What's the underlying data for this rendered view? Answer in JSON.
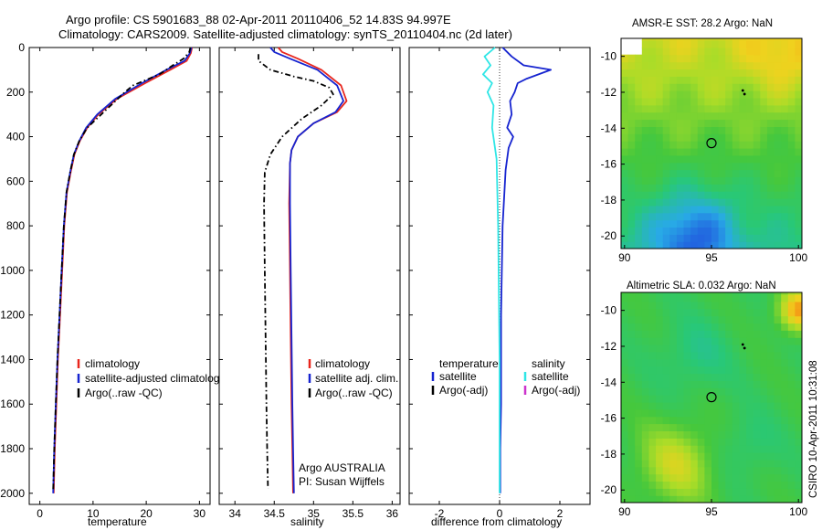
{
  "header": {
    "title_line1": "Argo profile: CS 5901683_88 02-Apr-2011 20110406_52 14.83S 94.997E",
    "title_line2": "Climatology: CARS2009. Satellite-adjusted climatology: synTS_20110404.nc (2d later)"
  },
  "colors": {
    "climatology": "#e8261d",
    "satellite": "#1624d0",
    "argo": "#000000",
    "sal_satellite": "#2fe6e6",
    "argo_adj_sal": "#cc33cc"
  },
  "chart_data": [
    {
      "type": "line",
      "name": "temperature",
      "xlabel": "temperature",
      "xlim": [
        -2,
        32
      ],
      "ylim": [
        2050,
        0
      ],
      "xticks": [
        0,
        10,
        20,
        30
      ],
      "yticks": [
        0,
        200,
        400,
        600,
        800,
        1000,
        1200,
        1400,
        1600,
        1800,
        2000
      ],
      "legend": [
        "climatology",
        "satellite-adjusted climatology",
        "Argo(..raw -QC)"
      ],
      "series": [
        {
          "name": "climatology",
          "color": "#e8261d",
          "style": "solid",
          "x": [
            28.6,
            28.4,
            27.6,
            24.5,
            19.8,
            14.5,
            11.0,
            8.9,
            7.5,
            6.5,
            5.8,
            5.1,
            4.6,
            4.2,
            3.8,
            3.4,
            3.1,
            2.8,
            2.6
          ],
          "y": [
            0,
            25,
            60,
            100,
            160,
            230,
            300,
            360,
            420,
            480,
            560,
            650,
            800,
            1000,
            1200,
            1400,
            1600,
            1800,
            2000
          ]
        },
        {
          "name": "satellite-adjusted climatology",
          "color": "#1624d0",
          "style": "solid",
          "x": [
            28.5,
            28.2,
            27.2,
            23.8,
            19.2,
            14.2,
            10.8,
            8.7,
            7.4,
            6.4,
            5.7,
            5.0,
            4.5,
            4.1,
            3.7,
            3.3,
            3.0,
            2.7,
            2.5
          ],
          "y": [
            0,
            25,
            60,
            100,
            160,
            230,
            300,
            360,
            420,
            480,
            560,
            650,
            800,
            1000,
            1200,
            1400,
            1600,
            1800,
            2000
          ]
        },
        {
          "name": "Argo(..raw -QC)",
          "color": "#000000",
          "style": "dashdot",
          "x": [
            28.3,
            28.1,
            27.0,
            25.0,
            22.5,
            19.5,
            17.5,
            16.0,
            12.0,
            8.9,
            7.4,
            6.4,
            5.7,
            5.0,
            4.5,
            4.1,
            3.7,
            3.3,
            3.0,
            2.7,
            2.5
          ],
          "y": [
            0,
            20,
            50,
            80,
            120,
            150,
            170,
            200,
            290,
            360,
            420,
            480,
            560,
            650,
            800,
            1000,
            1200,
            1400,
            1600,
            1800,
            1990
          ]
        }
      ]
    },
    {
      "type": "line",
      "name": "salinity",
      "xlabel": "salinity",
      "xlim": [
        33.8,
        36.1
      ],
      "ylim": [
        2050,
        0
      ],
      "xticks": [
        34,
        34.5,
        35,
        35.5,
        36
      ],
      "legend": [
        "climatology",
        "satellite adj. clim.",
        "Argo(..raw -QC)"
      ],
      "annotation": [
        "Argo AUSTRALIA",
        "PI: Susan Wijffels"
      ],
      "series": [
        {
          "name": "climatology",
          "color": "#e8261d",
          "style": "solid",
          "x": [
            34.55,
            34.6,
            34.8,
            35.1,
            35.35,
            35.42,
            35.3,
            35.0,
            34.8,
            34.72,
            34.7,
            34.69,
            34.7,
            34.71,
            34.72,
            34.73,
            34.74
          ],
          "y": [
            0,
            20,
            50,
            100,
            170,
            240,
            290,
            340,
            400,
            460,
            520,
            700,
            1000,
            1300,
            1600,
            1800,
            2000
          ]
        },
        {
          "name": "satellite adj. clim.",
          "color": "#1624d0",
          "style": "solid",
          "x": [
            34.45,
            34.5,
            34.7,
            35.05,
            35.3,
            35.38,
            35.28,
            35.0,
            34.8,
            34.72,
            34.7,
            34.7,
            34.71,
            34.72,
            34.73,
            34.74,
            34.75
          ],
          "y": [
            0,
            20,
            50,
            100,
            170,
            240,
            290,
            340,
            400,
            460,
            520,
            700,
            1000,
            1300,
            1600,
            1800,
            2000
          ]
        },
        {
          "name": "Argo(..raw -QC)",
          "color": "#000000",
          "style": "dashdot",
          "x": [
            34.3,
            34.3,
            34.45,
            34.75,
            35.0,
            35.2,
            35.25,
            35.1,
            34.85,
            34.6,
            34.45,
            34.38,
            34.37,
            34.38,
            34.39,
            34.4,
            34.41,
            34.42
          ],
          "y": [
            30,
            60,
            100,
            130,
            150,
            180,
            210,
            260,
            320,
            400,
            480,
            560,
            700,
            1000,
            1300,
            1600,
            1800,
            1980
          ]
        }
      ]
    },
    {
      "type": "line",
      "name": "difference",
      "xlabel": "difference from climatology",
      "xlim": [
        -3,
        3
      ],
      "ylim": [
        2050,
        0
      ],
      "xticks": [
        -2,
        0,
        2
      ],
      "legend_temperature": {
        "heading": "temperature",
        "items": [
          "satellite",
          "Argo(-adj)"
        ]
      },
      "legend_salinity": {
        "heading": "salinity",
        "items": [
          "satellite",
          "Argo(-adj)"
        ]
      },
      "series": [
        {
          "name": "temperature satellite",
          "color": "#1624d0",
          "style": "solid",
          "x": [
            0.1,
            0.4,
            0.8,
            1.7,
            0.9,
            0.6,
            0.5,
            0.35,
            0.4,
            0.25,
            0.45,
            0.3,
            0.2,
            0.1,
            0.05,
            0.05,
            0.02,
            0.02
          ],
          "y": [
            0,
            40,
            80,
            100,
            140,
            160,
            200,
            240,
            300,
            360,
            400,
            450,
            550,
            800,
            1200,
            1600,
            1800,
            2000
          ]
        },
        {
          "name": "salinity satellite",
          "color": "#2fe6e6",
          "style": "solid",
          "x": [
            -0.15,
            -0.5,
            -0.3,
            -0.55,
            -0.25,
            -0.4,
            -0.2,
            -0.25,
            -0.1,
            -0.05,
            0.0,
            0.0
          ],
          "y": [
            0,
            40,
            80,
            120,
            160,
            200,
            260,
            360,
            500,
            800,
            1400,
            2000
          ]
        }
      ]
    },
    {
      "type": "heatmap",
      "name": "sst",
      "title": "AMSR-E SST: 28.2 Argo: NaN",
      "xlim": [
        89.8,
        100.2
      ],
      "ylim": [
        -20.7,
        -9
      ],
      "xticks": [
        90,
        95,
        100
      ],
      "yticks": [
        -10,
        -12,
        -14,
        -16,
        -18,
        -20
      ],
      "marker": {
        "lon": 95.0,
        "lat": -14.83
      },
      "track": [
        {
          "lon": 96.9,
          "lat": -12.1
        },
        {
          "lon": 96.8,
          "lat": -11.9
        }
      ]
    },
    {
      "type": "heatmap",
      "name": "sla",
      "title": "Altimetric SLA: 0.032 Argo: NaN",
      "xlim": [
        89.8,
        100.2
      ],
      "ylim": [
        -20.7,
        -9
      ],
      "xticks": [
        90,
        95,
        100
      ],
      "yticks": [
        -10,
        -12,
        -14,
        -16,
        -18,
        -20
      ],
      "marker": {
        "lon": 95.0,
        "lat": -14.83
      },
      "track": [
        {
          "lon": 96.9,
          "lat": -12.1
        },
        {
          "lon": 96.8,
          "lat": -11.9
        }
      ]
    }
  ],
  "side_label": "CSIRO 10-Apr-2011 10:31:08"
}
